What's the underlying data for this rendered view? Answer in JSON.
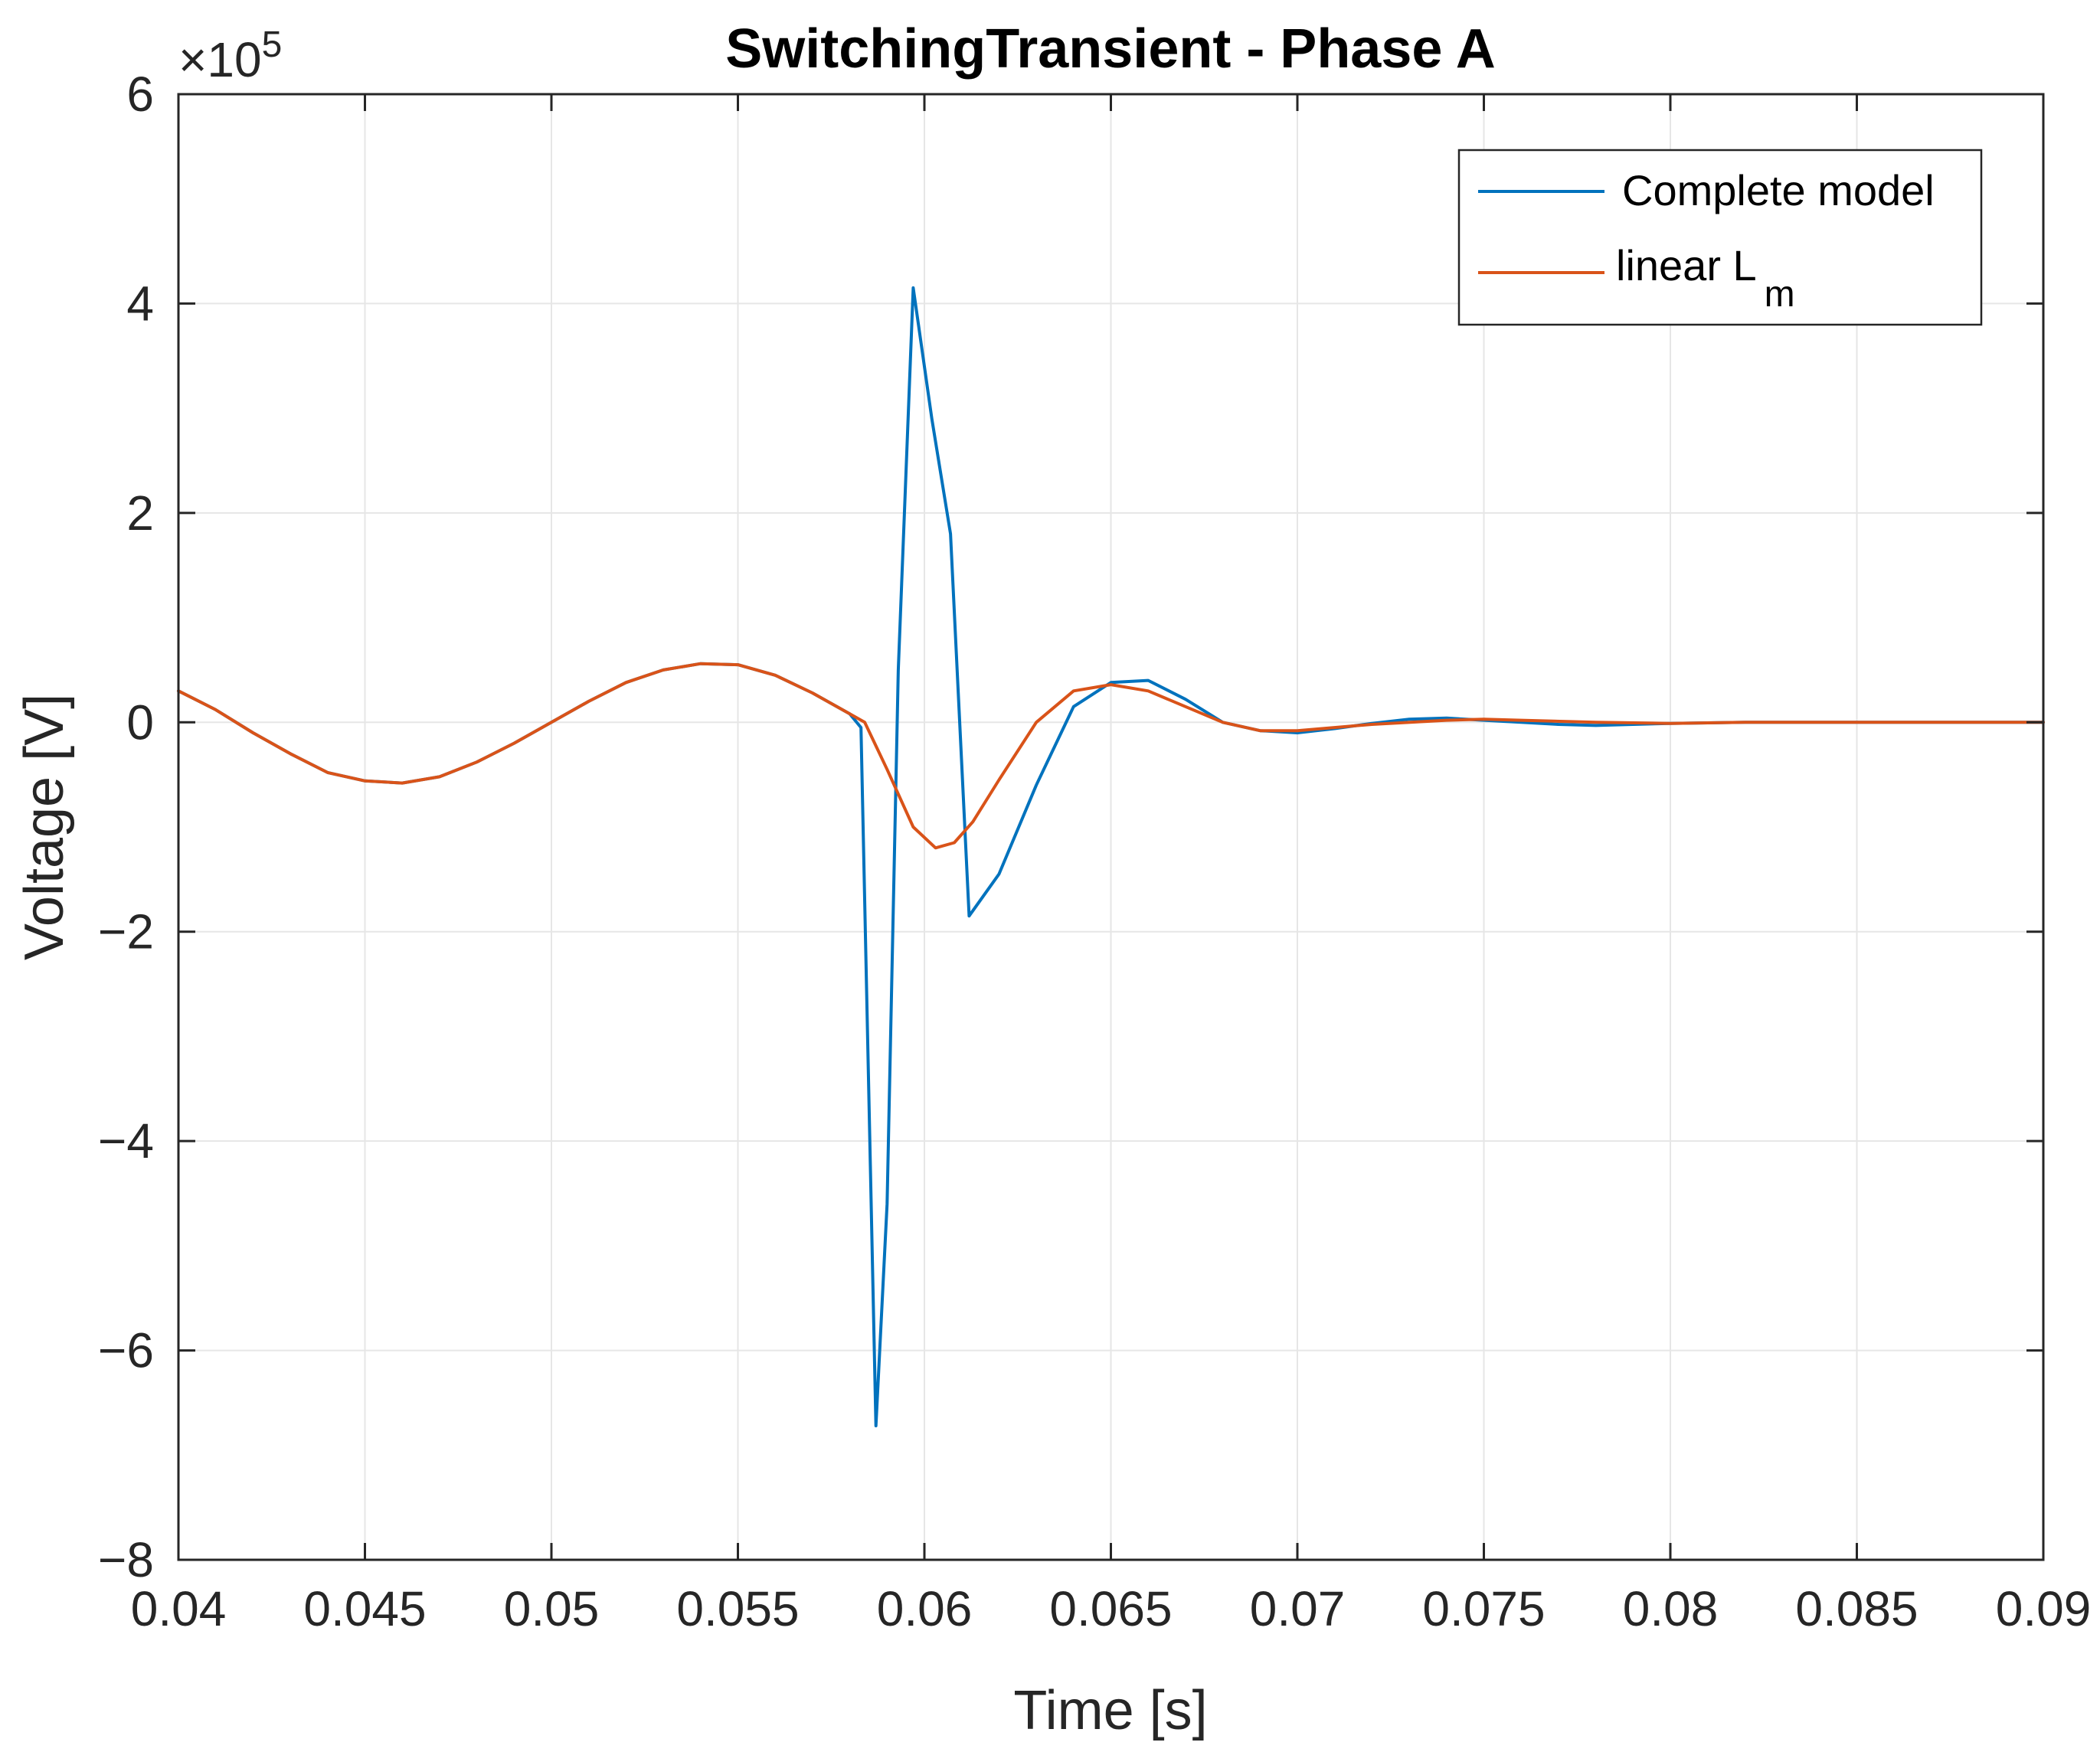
{
  "chart_data": {
    "type": "line",
    "title": "SwitchingTransient - Phase A",
    "xlabel": "Time [s]",
    "ylabel": "Voltage [V]",
    "y_exponent_label": "×10",
    "y_exponent_power": "5",
    "xlim": [
      0.04,
      0.09
    ],
    "ylim": [
      -8,
      6
    ],
    "grid": true,
    "legend_position": "top-right",
    "x_ticks": [
      0.04,
      0.045,
      0.05,
      0.055,
      0.06,
      0.065,
      0.07,
      0.075,
      0.08,
      0.085,
      0.09
    ],
    "x_tick_labels": [
      "0.04",
      "0.045",
      "0.05",
      "0.055",
      "0.06",
      "0.065",
      "0.07",
      "0.075",
      "0.08",
      "0.085",
      "0.09"
    ],
    "y_ticks": [
      -8,
      -6,
      -4,
      -2,
      0,
      2,
      4,
      6
    ],
    "y_tick_labels": [
      "−8",
      "−6",
      "−4",
      "−2",
      "0",
      "2",
      "4",
      "6"
    ],
    "series": [
      {
        "name": "Complete model",
        "color": "#0072BD",
        "x": [
          0.04,
          0.041,
          0.042,
          0.043,
          0.044,
          0.045,
          0.046,
          0.047,
          0.048,
          0.049,
          0.05,
          0.051,
          0.052,
          0.053,
          0.054,
          0.055,
          0.056,
          0.057,
          0.058,
          0.0583,
          0.0587,
          0.059,
          0.0593,
          0.0597,
          0.0602,
          0.0607,
          0.0612,
          0.062,
          0.063,
          0.064,
          0.065,
          0.066,
          0.067,
          0.068,
          0.069,
          0.07,
          0.071,
          0.072,
          0.073,
          0.074,
          0.075,
          0.076,
          0.077,
          0.078,
          0.079,
          0.08,
          0.082,
          0.084,
          0.086,
          0.088,
          0.09
        ],
        "y": [
          0.3,
          0.12,
          -0.1,
          -0.3,
          -0.48,
          -0.56,
          -0.58,
          -0.52,
          -0.38,
          -0.2,
          0.0,
          0.2,
          0.38,
          0.5,
          0.56,
          0.55,
          0.45,
          0.28,
          0.08,
          -0.05,
          -6.72,
          -4.6,
          0.5,
          4.15,
          2.9,
          1.8,
          -1.85,
          -1.45,
          -0.6,
          0.15,
          0.38,
          0.4,
          0.22,
          0.0,
          -0.08,
          -0.1,
          -0.06,
          -0.01,
          0.03,
          0.04,
          0.02,
          0.0,
          -0.02,
          -0.03,
          -0.02,
          -0.01,
          0.0,
          0.0,
          0.0,
          0.0,
          0.0
        ]
      },
      {
        "name": "linear L",
        "name_subscript": "m",
        "color": "#D95319",
        "x": [
          0.04,
          0.041,
          0.042,
          0.043,
          0.044,
          0.045,
          0.046,
          0.047,
          0.048,
          0.049,
          0.05,
          0.051,
          0.052,
          0.053,
          0.054,
          0.055,
          0.056,
          0.057,
          0.058,
          0.0584,
          0.059,
          0.0597,
          0.0603,
          0.0608,
          0.0613,
          0.062,
          0.063,
          0.064,
          0.065,
          0.066,
          0.067,
          0.068,
          0.069,
          0.07,
          0.072,
          0.074,
          0.075,
          0.076,
          0.078,
          0.08,
          0.082,
          0.084,
          0.086,
          0.088,
          0.09
        ],
        "y": [
          0.3,
          0.12,
          -0.1,
          -0.3,
          -0.48,
          -0.56,
          -0.58,
          -0.52,
          -0.38,
          -0.2,
          0.0,
          0.2,
          0.38,
          0.5,
          0.56,
          0.55,
          0.45,
          0.28,
          0.08,
          0.0,
          -0.45,
          -1.0,
          -1.2,
          -1.15,
          -0.95,
          -0.55,
          0.0,
          0.3,
          0.36,
          0.3,
          0.15,
          0.0,
          -0.08,
          -0.08,
          -0.02,
          0.02,
          0.03,
          0.02,
          0.0,
          -0.01,
          0.0,
          0.0,
          0.0,
          0.0,
          0.0
        ]
      }
    ]
  }
}
